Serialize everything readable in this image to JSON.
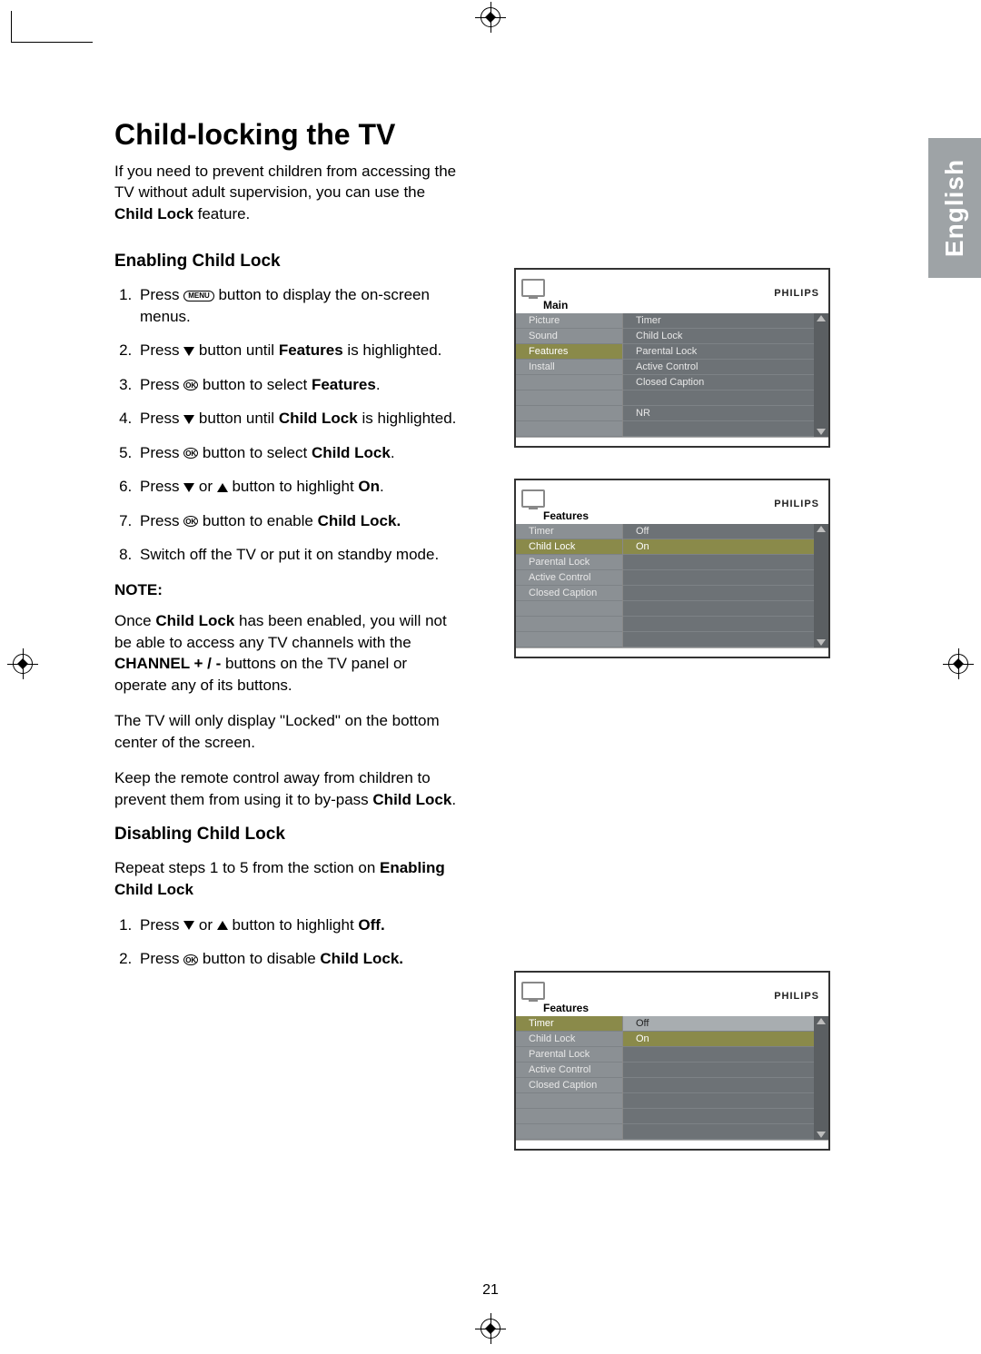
{
  "page_number": "21",
  "lang_tab": "English",
  "title": "Child-locking the TV",
  "intro_pre": "If you need to prevent children from accessing the TV without adult supervision, you can use the ",
  "intro_bold": "Child Lock",
  "intro_post": " feature.",
  "section1_heading": "Enabling Child Lock",
  "buttons": {
    "menu": "MENU",
    "ok": "OK"
  },
  "steps1": {
    "s1a": "Press ",
    "s1b": " button to display the on-screen menus.",
    "s2a": "Press ",
    "s2b": " button until ",
    "s2bold": "Features",
    "s2c": " is highlighted.",
    "s3a": "Press ",
    "s3b": " button to select ",
    "s3bold": "Features",
    "s3c": ".",
    "s4a": "Press ",
    "s4b": " button until ",
    "s4bold": "Child Lock",
    "s4c": " is highlighted.",
    "s5a": "Press ",
    "s5b": " button to select ",
    "s5bold": "Child Lock",
    "s5c": ".",
    "s6a": "Press ",
    "s6b": " or ",
    "s6c": " button to highlight ",
    "s6bold": "On",
    "s6d": ".",
    "s7a": "Press ",
    "s7b": " button to enable ",
    "s7bold": "Child Lock.",
    "s8": "Switch off the TV or put it on standby mode."
  },
  "note_label": "NOTE:",
  "note1_a": "Once ",
  "note1_bold1": "Child Lock",
  "note1_b": " has been enabled, you will not be able to access any TV channels with the ",
  "note1_bold2": "CHANNEL + / -",
  "note1_c": " buttons on the TV panel or operate any of its buttons.",
  "note2": "The TV will only display \"Locked\" on the bottom center of the screen.",
  "note3_a": "Keep the remote control away from children to prevent them from using it to by-pass ",
  "note3_bold": "Child Lock",
  "note3_b": ".",
  "section2_heading": "Disabling Child Lock",
  "disable_intro_a": "Repeat steps 1 to 5 from the sction on ",
  "disable_intro_bold": "Enabling Child Lock",
  "steps2": {
    "s1a": "Press ",
    "s1b": " or ",
    "s1c": " button to highlight ",
    "s1bold": "Off.",
    "s2a": "Press ",
    "s2b": " button to disable ",
    "s2bold": "Child Lock."
  },
  "osd_brand": "PHILIPS",
  "osd1": {
    "title": "Main",
    "left": [
      "Picture",
      "Sound",
      "Features",
      "Install"
    ],
    "left_highlight_index": 2,
    "right": [
      "Timer",
      "Child Lock",
      "Parental Lock",
      "Active Control",
      "Closed Caption",
      "",
      "NR",
      ""
    ],
    "colors": {
      "bg": "#6d7276",
      "left_bg": "#8b9094",
      "hl": "#8a8a4a",
      "text": "#e8e8e8"
    }
  },
  "osd2": {
    "title": "Features",
    "left": [
      "Timer",
      "Child Lock",
      "Parental Lock",
      "Active Control",
      "Closed Caption",
      "",
      "",
      ""
    ],
    "left_highlight_index": 1,
    "right": [
      "Off",
      "On",
      "",
      "",
      "",
      "",
      "",
      ""
    ],
    "right_highlight_index": 1
  },
  "osd3": {
    "title": "Features",
    "left": [
      "Timer",
      "Child Lock",
      "Parental Lock",
      "Active Control",
      "Closed Caption",
      "",
      "",
      ""
    ],
    "left_highlight_index": 0,
    "right": [
      "Off",
      "On",
      "",
      "",
      "",
      "",
      "",
      ""
    ],
    "right_highlight_index": 1,
    "right_row0_light": true
  }
}
